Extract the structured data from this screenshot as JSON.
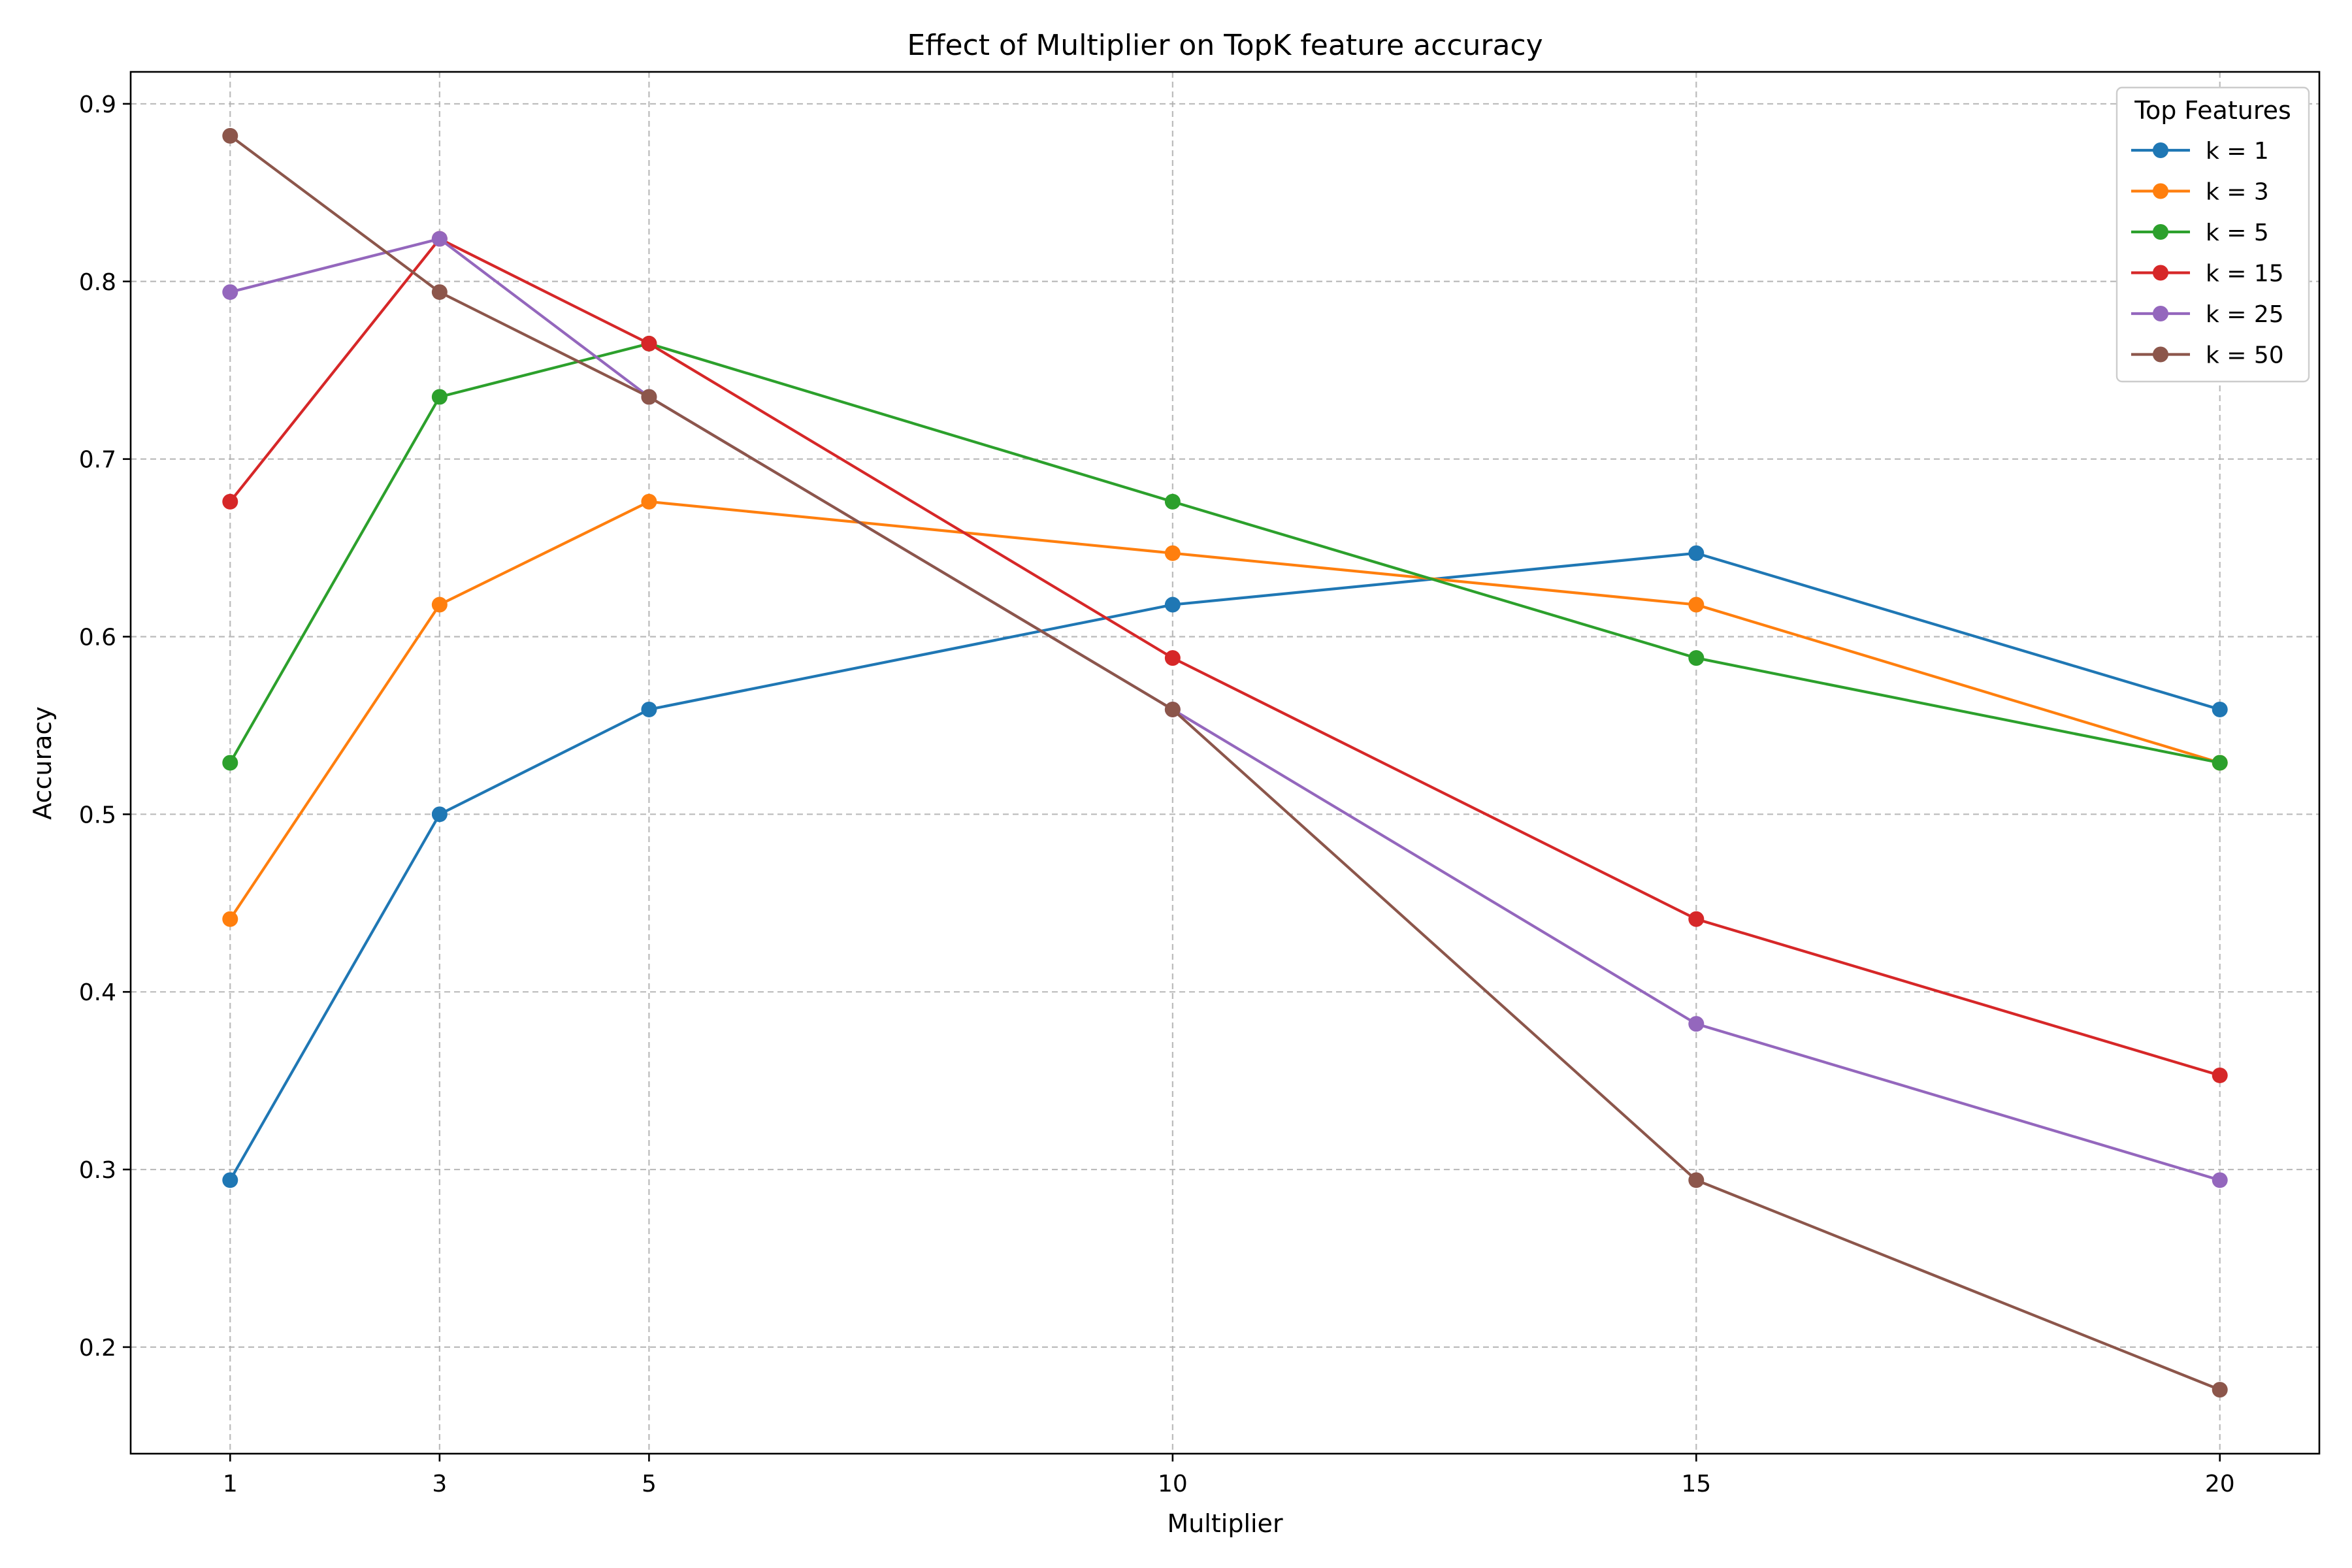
{
  "chart_data": {
    "type": "line",
    "title": "Effect of Multiplier on TopK feature accuracy",
    "xlabel": "Multiplier",
    "ylabel": "Accuracy",
    "x": [
      1,
      3,
      5,
      10,
      15,
      20
    ],
    "xticks": [
      1,
      3,
      5,
      10,
      15,
      20
    ],
    "xlim": [
      0.05,
      20.95
    ],
    "yticks": [
      0.2,
      0.3,
      0.4,
      0.5,
      0.6,
      0.7,
      0.8,
      0.9
    ],
    "ylim": [
      0.14,
      0.918
    ],
    "grid": true,
    "legend": {
      "title": "Top Features",
      "position": "top-right"
    },
    "series": [
      {
        "name": "k = 1",
        "color": "#1f77b4",
        "values": [
          0.294,
          0.5,
          0.559,
          0.618,
          0.647,
          0.559
        ]
      },
      {
        "name": "k = 3",
        "color": "#ff7f0e",
        "values": [
          0.441,
          0.618,
          0.676,
          0.647,
          0.618,
          0.529
        ]
      },
      {
        "name": "k = 5",
        "color": "#2ca02c",
        "values": [
          0.529,
          0.735,
          0.765,
          0.676,
          0.588,
          0.529
        ]
      },
      {
        "name": "k = 15",
        "color": "#d62728",
        "values": [
          0.676,
          0.824,
          0.765,
          0.588,
          0.441,
          0.353
        ]
      },
      {
        "name": "k = 25",
        "color": "#9467bd",
        "values": [
          0.794,
          0.824,
          0.735,
          0.559,
          0.382,
          0.294
        ]
      },
      {
        "name": "k = 50",
        "color": "#8c564b",
        "values": [
          0.882,
          0.794,
          0.735,
          0.559,
          0.294,
          0.176
        ]
      }
    ]
  }
}
